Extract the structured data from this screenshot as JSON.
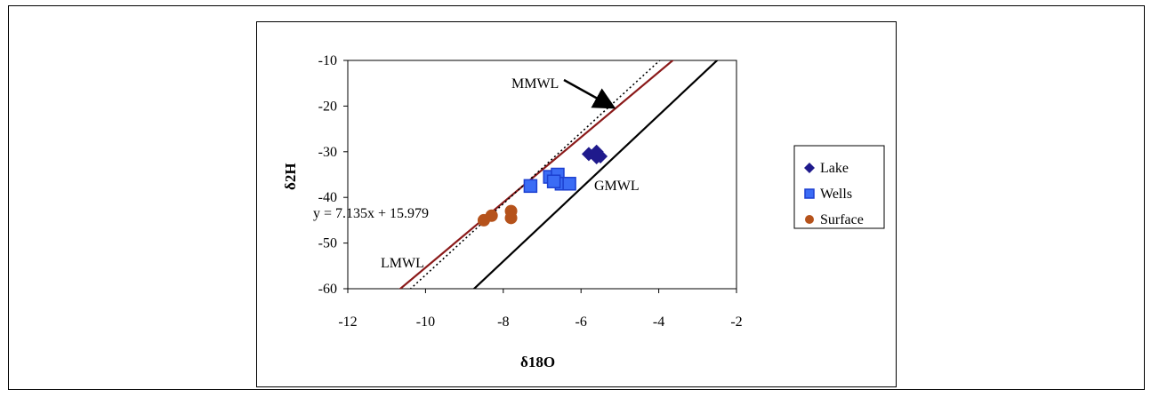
{
  "chart_data": {
    "type": "scatter",
    "xlabel": "δ18O",
    "ylabel": "δ2H",
    "xlim": [
      -12,
      -2
    ],
    "ylim": [
      -60,
      -10
    ],
    "x_ticks": [
      "-12",
      "-10",
      "-8",
      "-6",
      "-4",
      "-2"
    ],
    "y_ticks": [
      "-10",
      "-20",
      "-30",
      "-40",
      "-50",
      "-60"
    ],
    "grid": false,
    "legend_position": "right",
    "series": [
      {
        "name": "Lake",
        "marker": "diamond",
        "color": "#1f1a8c",
        "points": [
          [
            -5.8,
            -30.5
          ],
          [
            -5.6,
            -30.0
          ],
          [
            -5.5,
            -31.0
          ],
          [
            -5.6,
            -31.2
          ]
        ]
      },
      {
        "name": "Wells",
        "marker": "square",
        "color": "#3b6cf5",
        "points": [
          [
            -7.3,
            -37.5
          ],
          [
            -6.8,
            -35.5
          ],
          [
            -6.6,
            -35.0
          ],
          [
            -6.5,
            -37.0
          ],
          [
            -6.3,
            -37.0
          ],
          [
            -6.7,
            -36.5
          ]
        ]
      },
      {
        "name": "Surface",
        "marker": "circle",
        "color": "#b5521b",
        "points": [
          [
            -8.5,
            -45.0
          ],
          [
            -8.3,
            -44.0
          ],
          [
            -7.8,
            -43.0
          ],
          [
            -7.8,
            -44.5
          ]
        ]
      }
    ],
    "lines": [
      {
        "name": "LMWL",
        "style": "solid",
        "color": "#8b1a1a",
        "slope": 7.135,
        "intercept": 15.979
      },
      {
        "name": "GMWL",
        "style": "solid",
        "color": "#000000",
        "slope": 8.0,
        "intercept": 10.0
      },
      {
        "name": "MMWL",
        "style": "dotted",
        "color": "#000000",
        "slope": 7.8,
        "intercept": 21.0
      }
    ],
    "annotations": {
      "equation": "y = 7.135x + 15.979",
      "mmwl": "MMWL",
      "gmwl": "GMWL",
      "lmwl": "LMWL"
    }
  }
}
